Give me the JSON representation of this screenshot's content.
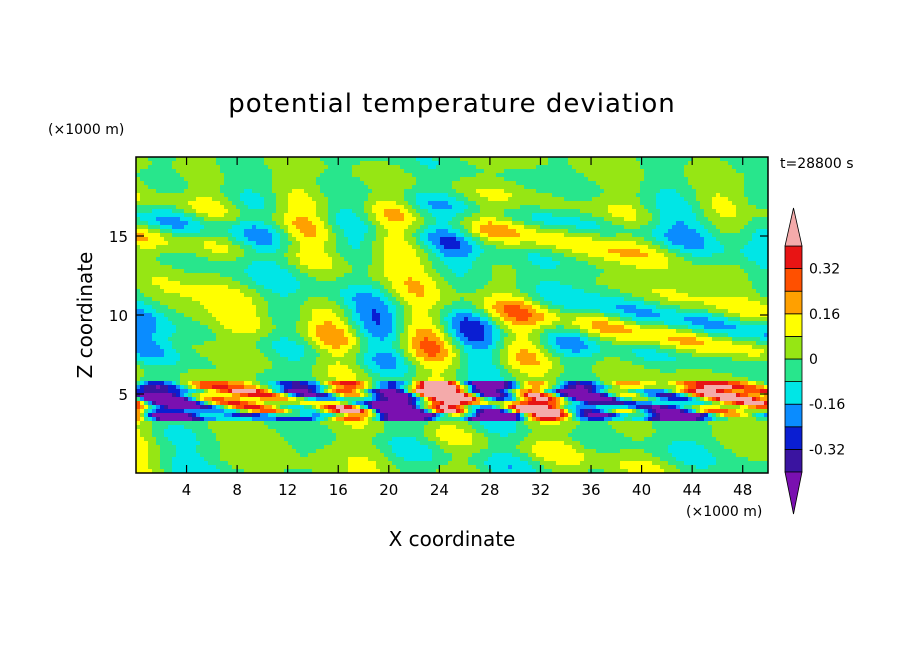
{
  "chart_data": {
    "type": "heatmap",
    "title": "potential temperature deviation",
    "xlabel": "X coordinate",
    "ylabel": "Z coordinate",
    "x_unit": "(×1000 m)",
    "y_unit": "(×1000 m)",
    "time_label": "t=28800 s",
    "xlim": [
      0,
      50
    ],
    "ylim": [
      0,
      20
    ],
    "x_ticks": [
      "4",
      "8",
      "12",
      "16",
      "20",
      "24",
      "28",
      "32",
      "36",
      "40",
      "44",
      "48"
    ],
    "y_ticks": [
      "5",
      "10",
      "15"
    ],
    "x_tick_values": [
      4,
      8,
      12,
      16,
      20,
      24,
      28,
      32,
      36,
      40,
      44,
      48
    ],
    "y_tick_values": [
      5,
      10,
      15
    ],
    "colorbar": {
      "levels": [
        -0.4,
        -0.32,
        -0.24,
        -0.16,
        -0.08,
        0,
        0.08,
        0.16,
        0.24,
        0.32,
        0.4
      ],
      "labels": [
        "0.32",
        "0.16",
        "0",
        "-0.16",
        "-0.32"
      ],
      "label_values": [
        0.32,
        0.16,
        0,
        -0.16,
        -0.32
      ],
      "colors": [
        "#7a10b0",
        "#3a14a0",
        "#0a1ed2",
        "#0a8cff",
        "#00e6e6",
        "#28e68c",
        "#96e614",
        "#ffff00",
        "#ffa000",
        "#ff5000",
        "#e81414",
        "#f4aaaa"
      ],
      "extend": "both"
    }
  }
}
